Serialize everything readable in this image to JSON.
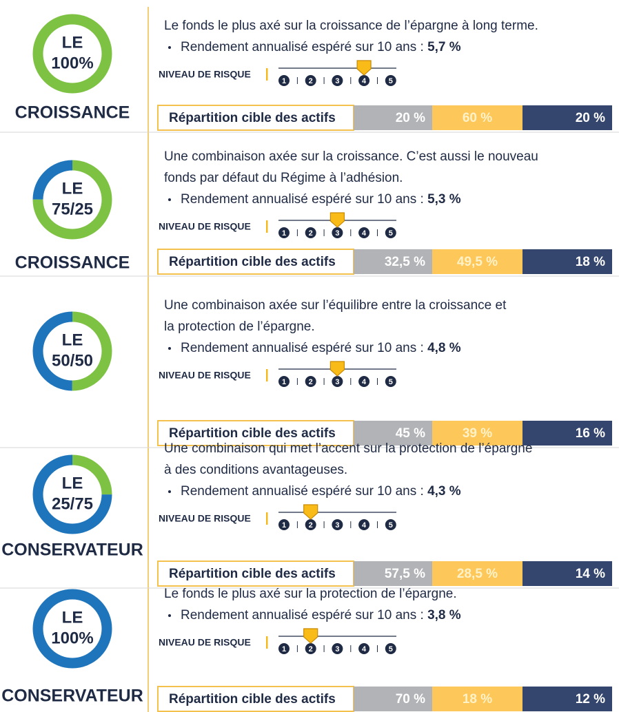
{
  "risk_label": "NIVEAU DE RISQUE",
  "risk_scale": [
    1,
    2,
    3,
    4,
    5
  ],
  "allocation_label": "Répartition cible des actifs",
  "rows": [
    {
      "name": "LE",
      "share": "100%",
      "category": "CROISSANCE",
      "donut": [
        100,
        0
      ],
      "description": [
        "Le fonds le plus axé sur la croissance de l’épargne à long terme."
      ],
      "return_label": "Rendement annualisé espéré sur 10 ans :",
      "return_value": "5,7 %",
      "risk_level": 4,
      "allocation": [
        "20 %",
        "60 %",
        "20 %"
      ]
    },
    {
      "name": "LE",
      "share": "75/25",
      "category": "CROISSANCE",
      "donut": [
        75,
        25
      ],
      "description": [
        "Une combinaison axée sur la croissance. C’est aussi le nouveau",
        "fonds par défaut du Régime à l’adhésion."
      ],
      "return_label": "Rendement annualisé espéré sur 10 ans :",
      "return_value": "5,3 %",
      "risk_level": 3,
      "allocation": [
        "32,5 %",
        "49,5 %",
        "18 %"
      ]
    },
    {
      "name": "LE",
      "share": "50/50",
      "donut": [
        50,
        50
      ],
      "description": [
        "Une combinaison axée sur l’équilibre entre la croissance et",
        "la protection de l’épargne."
      ],
      "return_label": "Rendement annualisé espéré sur 10 ans :",
      "return_value": "4,8 %",
      "risk_level": 3,
      "allocation": [
        "45 %",
        "39 %",
        "16 %"
      ]
    },
    {
      "name": "LE",
      "share": "25/75",
      "category": "CONSERVATEUR",
      "donut": [
        25,
        75
      ],
      "description": [
        "Une combinaison qui met l’accent sur la protection de l’épargne",
        "à des conditions avantageuses."
      ],
      "return_label": "Rendement annualisé espéré sur 10 ans :",
      "return_value": "4,3 %",
      "risk_level": 2,
      "allocation": [
        "57,5  %",
        "28,5 %",
        "14 %"
      ]
    },
    {
      "name": "LE",
      "share": "100%",
      "category": "CONSERVATEUR",
      "donut": [
        0,
        100
      ],
      "description": [
        "Le fonds le plus axé sur la protection de l’épargne."
      ],
      "return_label": "Rendement annualisé espéré sur 10 ans :",
      "return_value": "3,8 %",
      "risk_level": 2,
      "allocation": [
        "70 %",
        "18 %",
        "12 %"
      ]
    }
  ]
}
